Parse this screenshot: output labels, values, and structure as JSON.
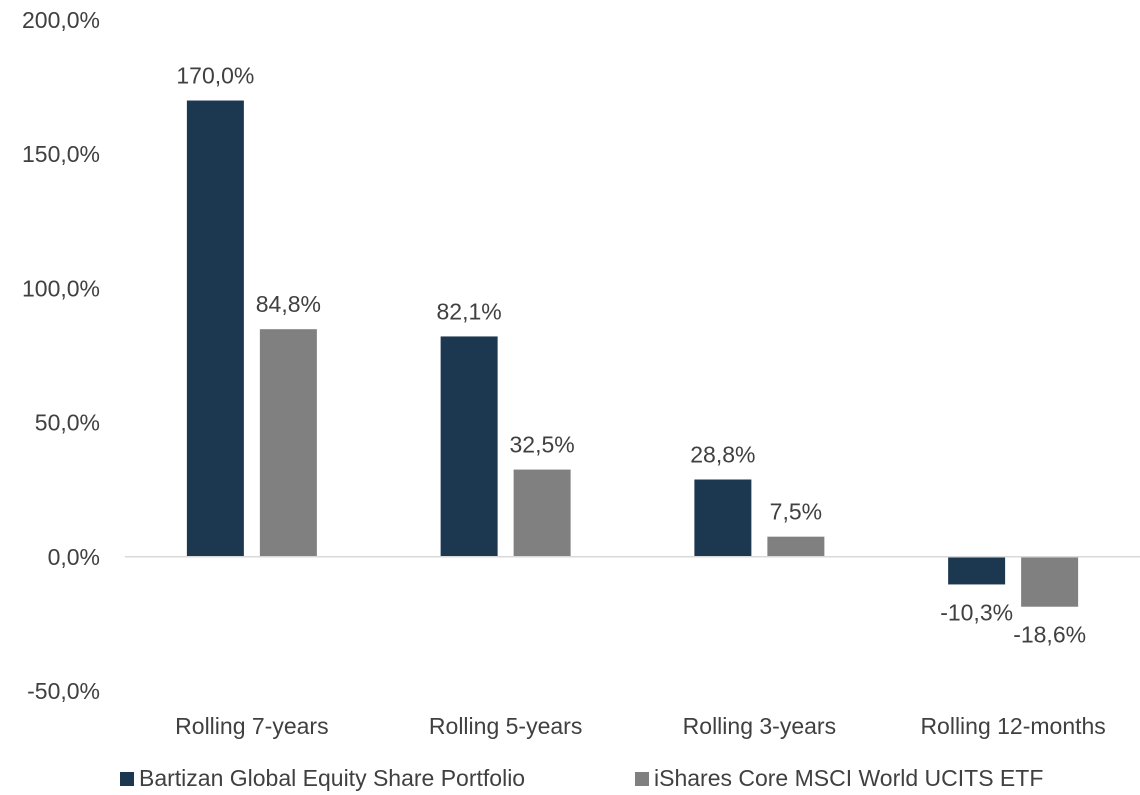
{
  "chart_data": {
    "type": "bar",
    "title": "",
    "xlabel": "",
    "ylabel": "",
    "categories": [
      "Rolling 7-years",
      "Rolling 5-years",
      "Rolling 3-years",
      "Rolling 12-months"
    ],
    "series": [
      {
        "name": "Bartizan Global Equity Share Portfolio",
        "color": "#1c3851",
        "values": [
          170.0,
          82.1,
          28.8,
          -10.3
        ],
        "labels": [
          "170,0%",
          "82,1%",
          "28,8%",
          "-10,3%"
        ]
      },
      {
        "name": "iShares Core MSCI World UCITS ETF",
        "color": "#808080",
        "values": [
          84.8,
          32.5,
          7.5,
          -18.6
        ],
        "labels": [
          "84,8%",
          "32,5%",
          "7,5%",
          "-18,6%"
        ]
      }
    ],
    "ylim": [
      -50,
      200
    ],
    "yticks": [
      -50,
      0,
      50,
      100,
      150,
      200
    ],
    "ytick_labels": [
      "-50,0%",
      "0,0%",
      "50,0%",
      "100,0%",
      "150,0%",
      "200,0%"
    ],
    "grid": false,
    "legend_position": "bottom"
  }
}
